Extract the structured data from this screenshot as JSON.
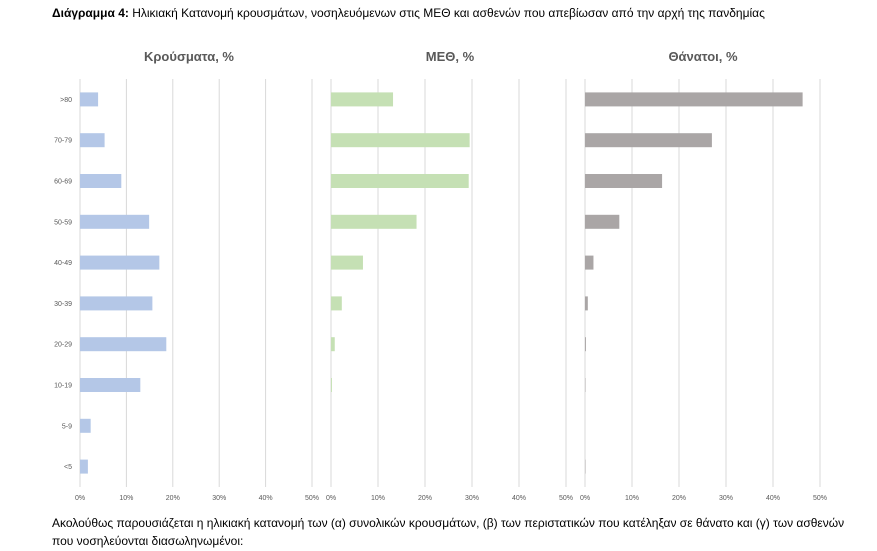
{
  "caption": {
    "label": "Διάγραμμα 4:",
    "text": " Ηλικιακή Κατανομή κρουσμάτων, νοσηλευόμενων στις ΜΕΘ και ασθενών που απεβίωσαν από την αρχή της πανδημίας"
  },
  "footer": {
    "text": "Ακολούθως παρουσιάζεται η ηλικιακή κατανομή των (α) συνολικών κρουσμάτων, (β) των περιστατικών που κατέληξαν σε θάνατο και (γ) των ασθενών που νοσηλεύονται διασωληνωμένοι:"
  },
  "colors": {
    "cases": "#b4c7e7",
    "icu": "#c5e0b4",
    "deaths": "#aaa6a6",
    "grid": "#d9d9d9",
    "axis_text": "#595959"
  },
  "chart_data": [
    {
      "type": "bar",
      "orientation": "horizontal",
      "title": "Κρούσματα, %",
      "categories": [
        ">80",
        "70-79",
        "60-69",
        "50-59",
        "40-49",
        "30-39",
        "20-29",
        "10-19",
        "5-9",
        "<5"
      ],
      "values": [
        3.9,
        5.3,
        8.9,
        14.9,
        17.1,
        15.6,
        18.6,
        13.0,
        2.3,
        1.7
      ],
      "xlim": [
        0,
        50
      ],
      "xticks": [
        "0%",
        "10%",
        "20%",
        "30%",
        "40%",
        "50%"
      ],
      "grid": true
    },
    {
      "type": "bar",
      "orientation": "horizontal",
      "title": "ΜΕΘ, %",
      "categories": [
        ">80",
        "70-79",
        "60-69",
        "50-59",
        "40-49",
        "30-39",
        "20-29",
        "10-19",
        "5-9",
        "<5"
      ],
      "values": [
        13.2,
        29.5,
        29.3,
        18.2,
        6.8,
        2.3,
        0.8,
        0.2,
        0,
        0
      ],
      "xlim": [
        0,
        50
      ],
      "xticks": [
        "0%",
        "10%",
        "20%",
        "30%",
        "40%",
        "50%"
      ],
      "grid": true
    },
    {
      "type": "bar",
      "orientation": "horizontal",
      "title": "Θάνατοι, %",
      "categories": [
        ">80",
        "70-79",
        "60-69",
        "50-59",
        "40-49",
        "30-39",
        "20-29",
        "10-19",
        "5-9",
        "<5"
      ],
      "values": [
        46.3,
        27.0,
        16.4,
        7.3,
        1.8,
        0.6,
        0.2,
        0.1,
        0,
        0.1
      ],
      "xlim": [
        0,
        50
      ],
      "xticks": [
        "0%",
        "10%",
        "20%",
        "30%",
        "40%",
        "50%"
      ],
      "grid": true
    }
  ]
}
